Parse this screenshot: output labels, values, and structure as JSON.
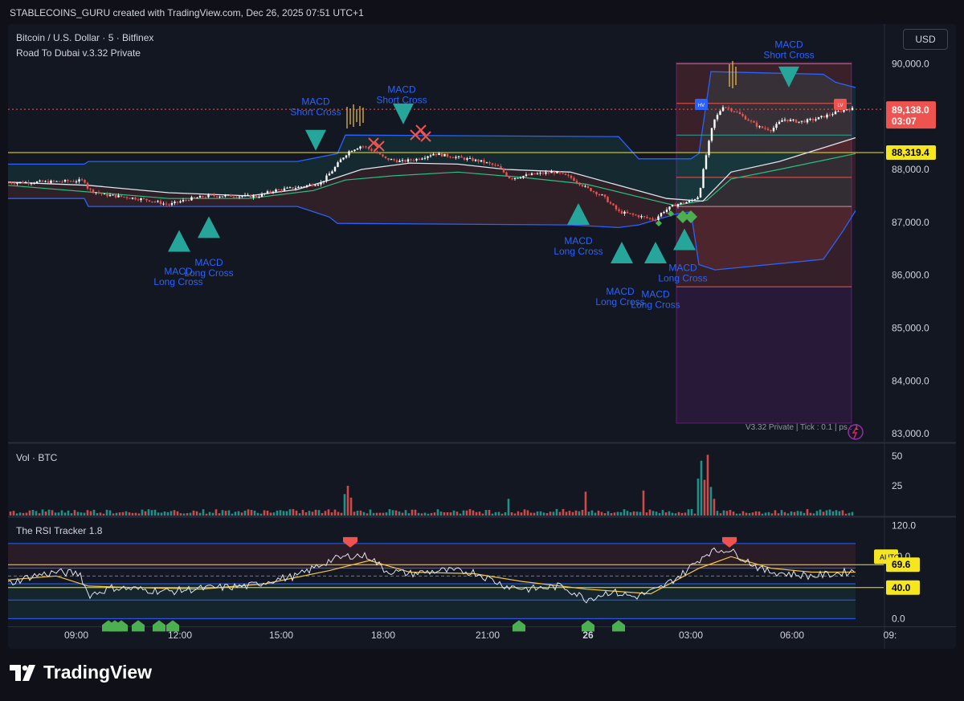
{
  "header": {
    "credit": "STABLECOINS_GURU created with TradingView.com, Dec 26, 2025 07:51 UTC+1"
  },
  "legend": {
    "symbol": "Bitcoin / U.S. Dollar · 5 · Bitfinex",
    "indicator": "Road To Dubai v.3.32 Private",
    "volume": "Vol · BTC",
    "rsi": "The RSI Tracker 1.8"
  },
  "currency_button": "USD",
  "info_text": "V3.32 Private | Tick : 0.1 | ps : 1",
  "footer": {
    "brand": "TradingView"
  },
  "colors": {
    "up": "#26a69a",
    "down": "#ef5350",
    "band": "#2962ff",
    "hline": "#f5e61e",
    "macd_label": "#2962ff"
  },
  "chart_data": [
    {
      "type": "candlestick",
      "title": "Bitcoin / U.S. Dollar · 5 · Bitfinex",
      "y_axis_labels": [
        "90,000.0",
        "88,000.0",
        "87,000.0",
        "86,000.0",
        "85,000.0",
        "84,000.0",
        "83,000.0"
      ],
      "ylim": [
        82850,
        90750
      ],
      "x_axis_labels": [
        "09:00",
        "12:00",
        "15:00",
        "18:00",
        "21:00",
        "26",
        "03:00",
        "06:00",
        "09:"
      ],
      "price_labels": [
        {
          "value": 89138.0,
          "text": "89,138.0",
          "countdown": "03:07"
        },
        {
          "value": 88319.4,
          "text": "88,319.4"
        }
      ],
      "close_path": [
        [
          0,
          87750
        ],
        [
          30,
          87760
        ],
        [
          60,
          87770
        ],
        [
          95,
          87790
        ],
        [
          100,
          87620
        ],
        [
          120,
          87520
        ],
        [
          150,
          87470
        ],
        [
          175,
          87420
        ],
        [
          200,
          87330
        ],
        [
          225,
          87440
        ],
        [
          250,
          87500
        ],
        [
          280,
          87500
        ],
        [
          310,
          87490
        ],
        [
          330,
          87600
        ],
        [
          360,
          87660
        ],
        [
          390,
          87750
        ],
        [
          405,
          88000
        ],
        [
          415,
          88200
        ],
        [
          425,
          88350
        ],
        [
          440,
          88450
        ],
        [
          455,
          88350
        ],
        [
          470,
          88200
        ],
        [
          490,
          88150
        ],
        [
          510,
          88200
        ],
        [
          530,
          88300
        ],
        [
          550,
          88250
        ],
        [
          570,
          88200
        ],
        [
          590,
          88150
        ],
        [
          610,
          88050
        ],
        [
          625,
          87830
        ],
        [
          650,
          87900
        ],
        [
          680,
          87950
        ],
        [
          700,
          87850
        ],
        [
          720,
          87650
        ],
        [
          740,
          87500
        ],
        [
          760,
          87200
        ],
        [
          775,
          87150
        ],
        [
          790,
          87100
        ],
        [
          805,
          87050
        ],
        [
          815,
          87200
        ],
        [
          830,
          87330
        ],
        [
          850,
          87400
        ],
        [
          860,
          87500
        ],
        [
          868,
          88200
        ],
        [
          878,
          88900
        ],
        [
          890,
          89200
        ],
        [
          905,
          89100
        ],
        [
          920,
          88950
        ],
        [
          935,
          88800
        ],
        [
          950,
          88750
        ],
        [
          965,
          88950
        ],
        [
          985,
          88900
        ],
        [
          1005,
          88950
        ],
        [
          1025,
          89050
        ],
        [
          1045,
          89150
        ],
        [
          1055,
          89138
        ]
      ],
      "band_upper": [
        [
          0,
          88100
        ],
        [
          95,
          88100
        ],
        [
          100,
          88150
        ],
        [
          360,
          88150
        ],
        [
          410,
          88300
        ],
        [
          420,
          88650
        ],
        [
          760,
          88620
        ],
        [
          785,
          88200
        ],
        [
          830,
          88200
        ],
        [
          850,
          88200
        ],
        [
          860,
          88300
        ],
        [
          875,
          89850
        ],
        [
          1015,
          89800
        ],
        [
          1030,
          89650
        ],
        [
          1055,
          89550
        ]
      ],
      "band_lower": [
        [
          0,
          87450
        ],
        [
          95,
          87450
        ],
        [
          100,
          87300
        ],
        [
          360,
          87300
        ],
        [
          400,
          87100
        ],
        [
          410,
          86980
        ],
        [
          700,
          86950
        ],
        [
          760,
          86900
        ],
        [
          785,
          86950
        ],
        [
          830,
          87150
        ],
        [
          850,
          87200
        ],
        [
          860,
          86200
        ],
        [
          880,
          86100
        ],
        [
          1015,
          86300
        ],
        [
          1040,
          86850
        ],
        [
          1055,
          87220
        ]
      ],
      "ma_white": [
        [
          0,
          87760
        ],
        [
          100,
          87700
        ],
        [
          200,
          87560
        ],
        [
          300,
          87500
        ],
        [
          360,
          87620
        ],
        [
          400,
          87800
        ],
        [
          440,
          88000
        ],
        [
          500,
          88120
        ],
        [
          560,
          88100
        ],
        [
          620,
          88000
        ],
        [
          700,
          87950
        ],
        [
          760,
          87700
        ],
        [
          820,
          87450
        ],
        [
          865,
          87400
        ],
        [
          900,
          87950
        ],
        [
          960,
          88150
        ],
        [
          1055,
          88600
        ]
      ],
      "ma_green": [
        [
          0,
          87700
        ],
        [
          200,
          87450
        ],
        [
          300,
          87450
        ],
        [
          380,
          87600
        ],
        [
          420,
          87800
        ],
        [
          480,
          87880
        ],
        [
          560,
          87950
        ],
        [
          640,
          87850
        ],
        [
          720,
          87720
        ],
        [
          780,
          87500
        ],
        [
          830,
          87320
        ],
        [
          870,
          87420
        ],
        [
          900,
          87820
        ],
        [
          960,
          88000
        ],
        [
          1055,
          88300
        ]
      ],
      "horizontal_lines": [
        {
          "value": 88319.4,
          "color": "#f5e61e",
          "label": "88,319.4"
        },
        {
          "value": 89138.0,
          "color": "#ef5350",
          "style": "dotted"
        },
        {
          "value": 90000,
          "color": "#ef5350"
        },
        {
          "value": 89250,
          "color": "#ef5350"
        },
        {
          "value": 88650,
          "color": "#26a69a"
        },
        {
          "value": 87850,
          "color": "#ef5350"
        },
        {
          "value": 87300,
          "color": "#a0a3ac"
        },
        {
          "value": 85780,
          "color": "#ef5350"
        }
      ],
      "annotations": [
        {
          "text": "MACD\nShort Cross",
          "x": 972,
          "y": 90300
        },
        {
          "text": "MACD\nShort Cross",
          "x": 490,
          "y": 89450
        },
        {
          "text": "MACD\nShort Cross",
          "x": 383,
          "y": 89220
        },
        {
          "text": "MACD\nLong Cross",
          "x": 212,
          "y": 86010
        },
        {
          "text": "MACD\nLong Cross",
          "x": 250,
          "y": 86180
        },
        {
          "text": "MACD\nLong Cross",
          "x": 710,
          "y": 86590
        },
        {
          "text": "MACD\nLong Cross",
          "x": 762,
          "y": 85630
        },
        {
          "text": "MACD\nLong Cross",
          "x": 806,
          "y": 85580
        },
        {
          "text": "MACD\nLong Cross",
          "x": 840,
          "y": 86080
        }
      ],
      "arrows_up": [
        [
          213,
          86640
        ],
        [
          250,
          86900
        ],
        [
          710,
          87150
        ],
        [
          764,
          86420
        ],
        [
          806,
          86420
        ],
        [
          842,
          86670
        ]
      ],
      "arrows_down": [
        [
          383,
          88550
        ],
        [
          492,
          89050
        ],
        [
          972,
          89750
        ]
      ]
    },
    {
      "type": "bar",
      "title": "Vol · BTC",
      "y_axis_labels": [
        "50",
        "25"
      ],
      "ylim": [
        0,
        60
      ],
      "spikes": [
        [
          418,
          18
        ],
        [
          423,
          25
        ],
        [
          428,
          15
        ],
        [
          623,
          14
        ],
        [
          720,
          20
        ],
        [
          790,
          21
        ],
        [
          860,
          31
        ],
        [
          864,
          46
        ],
        [
          868,
          30
        ],
        [
          872,
          51
        ],
        [
          876,
          24
        ],
        [
          880,
          14
        ]
      ]
    },
    {
      "type": "line",
      "title": "The RSI Tracker 1.8",
      "y_axis_labels": [
        "120.0",
        "80.0",
        "0.0"
      ],
      "ylim": [
        -10,
        130
      ],
      "level_labels": [
        {
          "value": 69.6,
          "text": "69.6"
        },
        {
          "value": 40.0,
          "text": "40.0"
        }
      ],
      "auto_label": "AUTO",
      "rsi": [
        [
          0,
          45
        ],
        [
          30,
          55
        ],
        [
          60,
          60
        ],
        [
          90,
          58
        ],
        [
          100,
          30
        ],
        [
          130,
          40
        ],
        [
          160,
          38
        ],
        [
          200,
          35
        ],
        [
          230,
          38
        ],
        [
          260,
          40
        ],
        [
          300,
          42
        ],
        [
          330,
          50
        ],
        [
          360,
          55
        ],
        [
          400,
          75
        ],
        [
          430,
          82
        ],
        [
          450,
          80
        ],
        [
          470,
          62
        ],
        [
          500,
          58
        ],
        [
          540,
          62
        ],
        [
          580,
          60
        ],
        [
          620,
          42
        ],
        [
          650,
          38
        ],
        [
          690,
          42
        ],
        [
          720,
          25
        ],
        [
          750,
          35
        ],
        [
          780,
          28
        ],
        [
          810,
          38
        ],
        [
          840,
          58
        ],
        [
          870,
          85
        ],
        [
          895,
          90
        ],
        [
          915,
          78
        ],
        [
          940,
          62
        ],
        [
          970,
          58
        ],
        [
          1000,
          55
        ],
        [
          1030,
          58
        ],
        [
          1055,
          62
        ]
      ],
      "signal": [
        [
          0,
          50
        ],
        [
          60,
          55
        ],
        [
          100,
          42
        ],
        [
          160,
          40
        ],
        [
          240,
          38
        ],
        [
          320,
          45
        ],
        [
          400,
          62
        ],
        [
          450,
          75
        ],
        [
          500,
          60
        ],
        [
          580,
          58
        ],
        [
          640,
          48
        ],
        [
          720,
          38
        ],
        [
          800,
          32
        ],
        [
          860,
          65
        ],
        [
          900,
          80
        ],
        [
          950,
          65
        ],
        [
          1000,
          60
        ],
        [
          1055,
          60
        ]
      ]
    }
  ]
}
